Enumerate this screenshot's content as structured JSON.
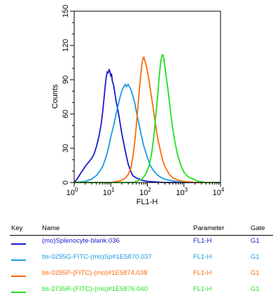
{
  "chart_data": {
    "type": "line",
    "xlabel": "FL1-H",
    "ylabel": "Counts",
    "x_scale": "log",
    "xlim": [
      1,
      10000
    ],
    "ylim": [
      0,
      150
    ],
    "x_ticks": [
      {
        "value": 1,
        "base": "10",
        "exp": "0"
      },
      {
        "value": 10,
        "base": "10",
        "exp": "1"
      },
      {
        "value": 100,
        "base": "10",
        "exp": "2"
      },
      {
        "value": 1000,
        "base": "10",
        "exp": "3"
      },
      {
        "value": 10000,
        "base": "10",
        "exp": "4"
      }
    ],
    "y_ticks": [
      "0",
      "30",
      "60",
      "90",
      "120",
      "150"
    ],
    "series": [
      {
        "name": "(mo)Splenocyte-blank.036",
        "color": "#1a1acc",
        "points": [
          [
            1,
            0
          ],
          [
            1.2,
            3
          ],
          [
            1.5,
            8
          ],
          [
            2,
            14
          ],
          [
            2.5,
            18
          ],
          [
            3,
            21
          ],
          [
            3.5,
            25
          ],
          [
            4,
            31
          ],
          [
            4.5,
            37
          ],
          [
            5,
            44
          ],
          [
            5.5,
            52
          ],
          [
            6,
            62
          ],
          [
            6.5,
            73
          ],
          [
            7,
            84
          ],
          [
            7.5,
            92
          ],
          [
            8,
            97
          ],
          [
            8.5,
            96
          ],
          [
            9,
            99
          ],
          [
            9.5,
            97
          ],
          [
            10,
            93
          ],
          [
            10.5,
            95
          ],
          [
            11,
            89
          ],
          [
            12,
            85
          ],
          [
            13,
            78
          ],
          [
            14,
            71
          ],
          [
            16,
            62
          ],
          [
            18,
            52
          ],
          [
            20,
            43
          ],
          [
            23,
            33
          ],
          [
            26,
            25
          ],
          [
            30,
            16
          ],
          [
            35,
            10
          ],
          [
            40,
            6
          ],
          [
            50,
            4
          ],
          [
            60,
            3
          ],
          [
            70,
            2
          ],
          [
            100,
            1
          ],
          [
            300,
            0
          ],
          [
            10000,
            0
          ]
        ]
      },
      {
        "name": "bs-0295G-FITC-(mo)Sp#1E5870.037",
        "color": "#1a9ae0",
        "points": [
          [
            1,
            0
          ],
          [
            2,
            1
          ],
          [
            3,
            3
          ],
          [
            4,
            6
          ],
          [
            5,
            10
          ],
          [
            6,
            14
          ],
          [
            7,
            20
          ],
          [
            8,
            26
          ],
          [
            9,
            33
          ],
          [
            10,
            40
          ],
          [
            12,
            50
          ],
          [
            14,
            60
          ],
          [
            16,
            68
          ],
          [
            18,
            75
          ],
          [
            20,
            80
          ],
          [
            22,
            83
          ],
          [
            25,
            86
          ],
          [
            27,
            84
          ],
          [
            30,
            86
          ],
          [
            32,
            84
          ],
          [
            35,
            82
          ],
          [
            40,
            76
          ],
          [
            45,
            70
          ],
          [
            50,
            62
          ],
          [
            60,
            50
          ],
          [
            70,
            40
          ],
          [
            80,
            32
          ],
          [
            100,
            22
          ],
          [
            120,
            15
          ],
          [
            150,
            10
          ],
          [
            200,
            6
          ],
          [
            250,
            4
          ],
          [
            300,
            3
          ],
          [
            400,
            2
          ],
          [
            600,
            1
          ],
          [
            1000,
            0
          ],
          [
            10000,
            0
          ]
        ]
      },
      {
        "name": "bs-0295P-(FITC)-(mo)#1E5874.038",
        "color": "#ff6a0a",
        "points": [
          [
            1,
            0
          ],
          [
            10,
            0
          ],
          [
            15,
            1
          ],
          [
            20,
            2
          ],
          [
            25,
            4
          ],
          [
            30,
            7
          ],
          [
            35,
            12
          ],
          [
            40,
            22
          ],
          [
            45,
            35
          ],
          [
            50,
            50
          ],
          [
            55,
            65
          ],
          [
            60,
            80
          ],
          [
            65,
            92
          ],
          [
            70,
            102
          ],
          [
            75,
            108
          ],
          [
            80,
            110
          ],
          [
            85,
            107
          ],
          [
            90,
            104
          ],
          [
            100,
            98
          ],
          [
            110,
            90
          ],
          [
            120,
            82
          ],
          [
            140,
            68
          ],
          [
            160,
            55
          ],
          [
            180,
            44
          ],
          [
            200,
            36
          ],
          [
            250,
            22
          ],
          [
            300,
            14
          ],
          [
            400,
            7
          ],
          [
            500,
            4
          ],
          [
            700,
            2
          ],
          [
            1000,
            1
          ],
          [
            2000,
            0
          ],
          [
            10000,
            0
          ]
        ]
      },
      {
        "name": "bs-2735R-(FITC)-(mo)#1E5876.040",
        "color": "#1ee01e",
        "points": [
          [
            1,
            0
          ],
          [
            40,
            0
          ],
          [
            50,
            1
          ],
          [
            70,
            3
          ],
          [
            90,
            7
          ],
          [
            110,
            14
          ],
          [
            130,
            25
          ],
          [
            150,
            40
          ],
          [
            170,
            58
          ],
          [
            190,
            75
          ],
          [
            210,
            92
          ],
          [
            230,
            105
          ],
          [
            250,
            111
          ],
          [
            265,
            112
          ],
          [
            280,
            109
          ],
          [
            300,
            102
          ],
          [
            330,
            92
          ],
          [
            370,
            80
          ],
          [
            420,
            65
          ],
          [
            480,
            50
          ],
          [
            550,
            38
          ],
          [
            650,
            26
          ],
          [
            800,
            16
          ],
          [
            1000,
            9
          ],
          [
            1300,
            5
          ],
          [
            1800,
            3
          ],
          [
            2500,
            1
          ],
          [
            4000,
            0
          ],
          [
            10000,
            0
          ]
        ]
      }
    ]
  },
  "legend": {
    "headers": {
      "key": "Key",
      "name": "Name",
      "parameter": "Parameter",
      "gate": "Gate"
    },
    "rows": [
      {
        "color": "#1a1acc",
        "name": "(mo)Splenocyte-blank.036",
        "parameter": "FL1-H",
        "gate": "G1"
      },
      {
        "color": "#1a9ae0",
        "name": "bs-0295G-FITC-(mo)Sp#1E5870.037",
        "parameter": "FL1-H",
        "gate": "G1"
      },
      {
        "color": "#ff6a0a",
        "name": "bs-0295P-(FITC)-(mo)#1E5874.038",
        "parameter": "FL1-H",
        "gate": "G1"
      },
      {
        "color": "#1ee01e",
        "name": "bs-2735R-(FITC)-(mo)#1E5876.040",
        "parameter": "FL1-H",
        "gate": "G1"
      }
    ]
  }
}
